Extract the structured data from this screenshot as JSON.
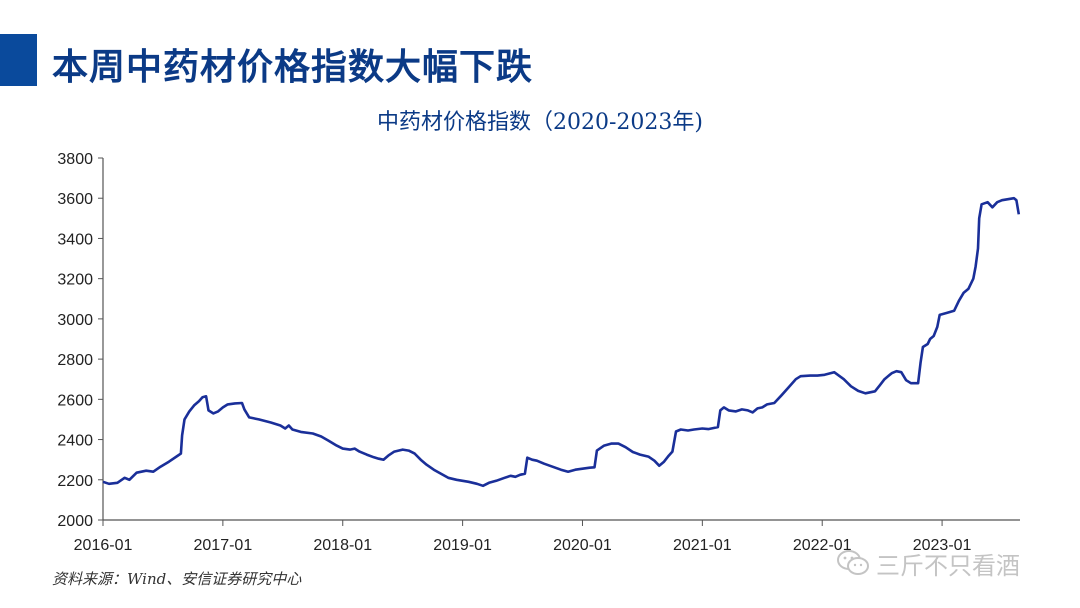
{
  "header": {
    "title": "本周中药材价格指数大幅下跌"
  },
  "chart_data": {
    "type": "line",
    "title": "中药材价格指数（2020-2023年)",
    "xlabel": "",
    "ylabel": "",
    "ylim": [
      2000,
      3800
    ],
    "yticks": [
      2000,
      2200,
      2400,
      2600,
      2800,
      3000,
      3200,
      3400,
      3600,
      3800
    ],
    "xlim": [
      2016.0,
      2023.65
    ],
    "xtick_labels": [
      "2016-01",
      "2017-01",
      "2018-01",
      "2019-01",
      "2020-01",
      "2021-01",
      "2022-01",
      "2023-01"
    ],
    "grid": false,
    "series": [
      {
        "color": "#1a2f99",
        "points": [
          [
            2016.0,
            2190
          ],
          [
            2016.05,
            2180
          ],
          [
            2016.12,
            2185
          ],
          [
            2016.18,
            2210
          ],
          [
            2016.22,
            2200
          ],
          [
            2016.28,
            2235
          ],
          [
            2016.36,
            2245
          ],
          [
            2016.42,
            2240
          ],
          [
            2016.48,
            2265
          ],
          [
            2016.55,
            2290
          ],
          [
            2016.62,
            2318
          ],
          [
            2016.65,
            2330
          ],
          [
            2016.66,
            2420
          ],
          [
            2016.68,
            2500
          ],
          [
            2016.72,
            2540
          ],
          [
            2016.76,
            2570
          ],
          [
            2016.8,
            2590
          ],
          [
            2016.83,
            2610
          ],
          [
            2016.86,
            2615
          ],
          [
            2016.88,
            2545
          ],
          [
            2016.92,
            2530
          ],
          [
            2016.96,
            2540
          ],
          [
            2017.0,
            2560
          ],
          [
            2017.04,
            2575
          ],
          [
            2017.1,
            2580
          ],
          [
            2017.16,
            2582
          ],
          [
            2017.18,
            2550
          ],
          [
            2017.22,
            2510
          ],
          [
            2017.3,
            2500
          ],
          [
            2017.4,
            2485
          ],
          [
            2017.48,
            2470
          ],
          [
            2017.52,
            2455
          ],
          [
            2017.55,
            2470
          ],
          [
            2017.58,
            2450
          ],
          [
            2017.65,
            2438
          ],
          [
            2017.75,
            2430
          ],
          [
            2017.82,
            2415
          ],
          [
            2017.88,
            2395
          ],
          [
            2017.95,
            2370
          ],
          [
            2018.0,
            2355
          ],
          [
            2018.06,
            2350
          ],
          [
            2018.1,
            2355
          ],
          [
            2018.14,
            2340
          ],
          [
            2018.2,
            2325
          ],
          [
            2018.26,
            2312
          ],
          [
            2018.3,
            2305
          ],
          [
            2018.34,
            2300
          ],
          [
            2018.38,
            2320
          ],
          [
            2018.43,
            2340
          ],
          [
            2018.5,
            2350
          ],
          [
            2018.55,
            2345
          ],
          [
            2018.6,
            2330
          ],
          [
            2018.65,
            2300
          ],
          [
            2018.7,
            2275
          ],
          [
            2018.76,
            2250
          ],
          [
            2018.82,
            2230
          ],
          [
            2018.88,
            2210
          ],
          [
            2018.95,
            2200
          ],
          [
            2019.0,
            2195
          ],
          [
            2019.05,
            2190
          ],
          [
            2019.12,
            2180
          ],
          [
            2019.17,
            2170
          ],
          [
            2019.22,
            2185
          ],
          [
            2019.28,
            2195
          ],
          [
            2019.35,
            2210
          ],
          [
            2019.4,
            2220
          ],
          [
            2019.44,
            2215
          ],
          [
            2019.48,
            2225
          ],
          [
            2019.52,
            2230
          ],
          [
            2019.54,
            2310
          ],
          [
            2019.58,
            2300
          ],
          [
            2019.62,
            2295
          ],
          [
            2019.68,
            2280
          ],
          [
            2019.75,
            2265
          ],
          [
            2019.82,
            2250
          ],
          [
            2019.88,
            2240
          ],
          [
            2019.94,
            2250
          ],
          [
            2020.0,
            2255
          ],
          [
            2020.06,
            2260
          ],
          [
            2020.1,
            2262
          ],
          [
            2020.12,
            2345
          ],
          [
            2020.18,
            2370
          ],
          [
            2020.24,
            2380
          ],
          [
            2020.3,
            2380
          ],
          [
            2020.36,
            2362
          ],
          [
            2020.42,
            2338
          ],
          [
            2020.48,
            2325
          ],
          [
            2020.55,
            2315
          ],
          [
            2020.6,
            2295
          ],
          [
            2020.64,
            2270
          ],
          [
            2020.68,
            2290
          ],
          [
            2020.72,
            2320
          ],
          [
            2020.75,
            2340
          ],
          [
            2020.78,
            2440
          ],
          [
            2020.82,
            2450
          ],
          [
            2020.88,
            2445
          ],
          [
            2020.93,
            2450
          ],
          [
            2021.0,
            2455
          ],
          [
            2021.05,
            2452
          ],
          [
            2021.13,
            2462
          ],
          [
            2021.15,
            2545
          ],
          [
            2021.18,
            2560
          ],
          [
            2021.22,
            2545
          ],
          [
            2021.28,
            2540
          ],
          [
            2021.33,
            2550
          ],
          [
            2021.38,
            2545
          ],
          [
            2021.42,
            2535
          ],
          [
            2021.46,
            2555
          ],
          [
            2021.5,
            2560
          ],
          [
            2021.54,
            2575
          ],
          [
            2021.6,
            2582
          ],
          [
            2021.66,
            2620
          ],
          [
            2021.72,
            2660
          ],
          [
            2021.78,
            2700
          ],
          [
            2021.82,
            2715
          ],
          [
            2021.9,
            2718
          ],
          [
            2021.96,
            2718
          ],
          [
            2022.02,
            2722
          ],
          [
            2022.1,
            2735
          ],
          [
            2022.18,
            2700
          ],
          [
            2022.24,
            2665
          ],
          [
            2022.3,
            2642
          ],
          [
            2022.36,
            2630
          ],
          [
            2022.44,
            2640
          ],
          [
            2022.48,
            2670
          ],
          [
            2022.52,
            2700
          ],
          [
            2022.58,
            2730
          ],
          [
            2022.62,
            2740
          ],
          [
            2022.66,
            2735
          ],
          [
            2022.7,
            2695
          ],
          [
            2022.74,
            2680
          ],
          [
            2022.8,
            2680
          ],
          [
            2022.82,
            2780
          ],
          [
            2022.84,
            2860
          ],
          [
            2022.88,
            2875
          ],
          [
            2022.9,
            2900
          ],
          [
            2022.93,
            2915
          ],
          [
            2022.96,
            2960
          ],
          [
            2022.98,
            3020
          ],
          [
            2023.04,
            3030
          ],
          [
            2023.1,
            3040
          ],
          [
            2023.14,
            3090
          ],
          [
            2023.18,
            3130
          ],
          [
            2023.22,
            3150
          ],
          [
            2023.26,
            3200
          ],
          [
            2023.28,
            3260
          ],
          [
            2023.3,
            3350
          ],
          [
            2023.31,
            3500
          ],
          [
            2023.33,
            3570
          ],
          [
            2023.38,
            3580
          ],
          [
            2023.42,
            3555
          ],
          [
            2023.46,
            3580
          ],
          [
            2023.5,
            3590
          ],
          [
            2023.55,
            3595
          ],
          [
            2023.6,
            3600
          ],
          [
            2023.62,
            3590
          ],
          [
            2023.64,
            3520
          ]
        ]
      }
    ]
  },
  "footer": {
    "source": "资料来源：Wind、安信证券研究中心"
  },
  "watermark": {
    "text": "三斤不只看酒",
    "icon": "wechat-icon"
  }
}
